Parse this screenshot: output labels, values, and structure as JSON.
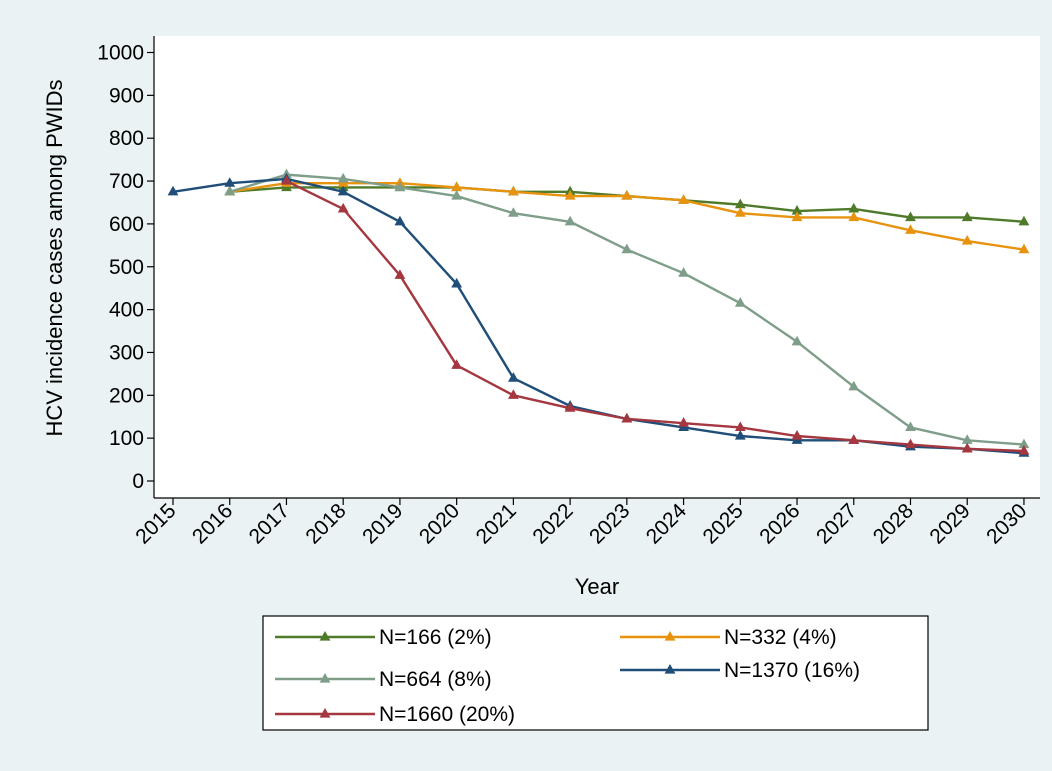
{
  "colors": {
    "background": "#eaf2f3",
    "plot_background": "#ffffff"
  },
  "chart_data": {
    "type": "line",
    "title": "",
    "xlabel": "Year",
    "ylabel": "HCV incidence cases among PWIDs",
    "x": [
      2015,
      2016,
      2017,
      2018,
      2019,
      2020,
      2021,
      2022,
      2023,
      2024,
      2025,
      2026,
      2027,
      2028,
      2029,
      2030
    ],
    "x_tick_labels": [
      "2015",
      "2016",
      "2017",
      "2018",
      "2019",
      "2020",
      "2021",
      "2022",
      "2023",
      "2024",
      "2025",
      "2026",
      "2027",
      "2028",
      "2029",
      "2030"
    ],
    "ylim": [
      0,
      1000
    ],
    "y_ticks": [
      0,
      100,
      200,
      300,
      400,
      500,
      600,
      700,
      800,
      900,
      1000
    ],
    "y_tick_labels": [
      "0",
      "100",
      "200",
      "300",
      "400",
      "500",
      "600",
      "700",
      "800",
      "900",
      "1000"
    ],
    "grid": false,
    "marker": "triangle",
    "legend_position": "bottom",
    "series": [
      {
        "name": "N=166 (2%)",
        "color": "#4e7a2a",
        "x": [
          2016,
          2017,
          2018,
          2019,
          2020,
          2021,
          2022,
          2023,
          2024,
          2025,
          2026,
          2027,
          2028,
          2029,
          2030
        ],
        "values": [
          675,
          685,
          685,
          685,
          685,
          675,
          675,
          665,
          655,
          645,
          630,
          635,
          615,
          615,
          605
        ]
      },
      {
        "name": "N=332 (4%)",
        "color": "#e8930e",
        "x": [
          2016,
          2017,
          2018,
          2019,
          2020,
          2021,
          2022,
          2023,
          2024,
          2025,
          2026,
          2027,
          2028,
          2029,
          2030
        ],
        "values": [
          675,
          695,
          695,
          695,
          685,
          675,
          665,
          665,
          655,
          625,
          615,
          615,
          585,
          560,
          540
        ]
      },
      {
        "name": "N=664 (8%)",
        "color": "#7f9e8a",
        "x": [
          2016,
          2017,
          2018,
          2019,
          2020,
          2021,
          2022,
          2023,
          2024,
          2025,
          2026,
          2027,
          2028,
          2029,
          2030
        ],
        "values": [
          675,
          715,
          705,
          685,
          665,
          625,
          605,
          540,
          485,
          415,
          325,
          220,
          125,
          95,
          85
        ]
      },
      {
        "name": "N=1370 (16%)",
        "color": "#1f4e79",
        "x": [
          2015,
          2016,
          2017,
          2018,
          2019,
          2020,
          2021,
          2022,
          2023,
          2024,
          2025,
          2026,
          2027,
          2028,
          2029,
          2030
        ],
        "values": [
          675,
          695,
          705,
          675,
          605,
          460,
          240,
          175,
          145,
          125,
          105,
          95,
          95,
          80,
          75,
          65
        ]
      },
      {
        "name": "N=1660 (20%)",
        "color": "#a4373f",
        "x": [
          2017,
          2018,
          2019,
          2020,
          2021,
          2022,
          2023,
          2024,
          2025,
          2026,
          2027,
          2028,
          2029,
          2030
        ],
        "values": [
          700,
          635,
          480,
          270,
          200,
          170,
          145,
          135,
          125,
          105,
          95,
          85,
          75,
          70
        ]
      }
    ],
    "legend_order": [
      {
        "series": 0,
        "col": 0,
        "row": 0
      },
      {
        "series": 1,
        "col": 1,
        "row": 0
      },
      {
        "series": 2,
        "col": 0,
        "row": 1
      },
      {
        "series": 3,
        "col": 1,
        "row": 1
      },
      {
        "series": 4,
        "col": 0,
        "row": 2
      }
    ]
  }
}
